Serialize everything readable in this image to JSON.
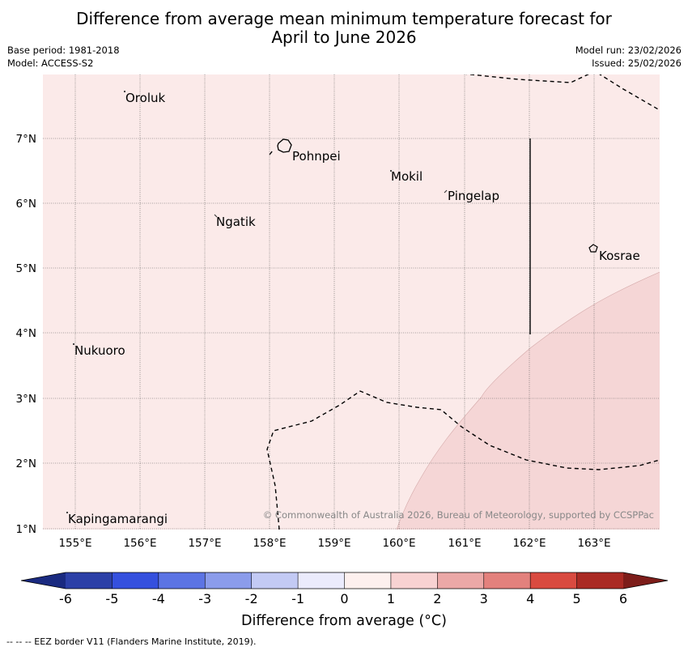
{
  "title": {
    "line1": "Difference from average mean minimum temperature forecast for",
    "line2": "April to June 2026"
  },
  "meta": {
    "base_period": "Base period: 1981-2018",
    "model": "Model: ACCESS-S2",
    "model_run": "Model run: 23/02/2026",
    "issued": "Issued: 25/02/2026"
  },
  "map": {
    "background_color": "#fbeae9",
    "warm_zone_color": "#f5d6d6",
    "lat_labels": [
      "7°N",
      "6°N",
      "5°N",
      "4°N",
      "3°N",
      "2°N",
      "1°N"
    ],
    "lon_labels": [
      "155°E",
      "156°E",
      "157°E",
      "158°E",
      "159°E",
      "160°E",
      "161°E",
      "162°E",
      "163°E"
    ],
    "places": [
      {
        "name": "Oroluk",
        "icon": "atoll-dot-icon"
      },
      {
        "name": "Pohnpei",
        "icon": "island-outline-icon"
      },
      {
        "name": "Mokil",
        "icon": "atoll-dot-icon"
      },
      {
        "name": "Pingelap",
        "icon": "atoll-dot-icon"
      },
      {
        "name": "Ngatik",
        "icon": "atoll-dot-icon"
      },
      {
        "name": "Kosrae",
        "icon": "island-outline-icon"
      },
      {
        "name": "Nukuoro",
        "icon": "atoll-dot-icon"
      },
      {
        "name": "Kapingamarangi",
        "icon": "atoll-dot-icon"
      }
    ],
    "copyright": "© Commonwealth of Australia 2026, Bureau of Meteorology, supported by CCSPPac"
  },
  "colorbar": {
    "ticks": [
      "-6",
      "-5",
      "-4",
      "-3",
      "-2",
      "-1",
      "0",
      "1",
      "2",
      "3",
      "4",
      "5",
      "6"
    ],
    "colors": [
      "#2c40a7",
      "#3550de",
      "#5c74e4",
      "#8b9ceb",
      "#c3caf4",
      "#ebebfc",
      "#fdf0ee",
      "#f8d2d2",
      "#eba8a7",
      "#e3817d",
      "#d94a40",
      "#aa2a24"
    ],
    "under_color": "#1a2a80",
    "over_color": "#7d1d1a",
    "label": "Difference from average (°C)"
  },
  "footnote": "--  --  -- EEZ border V11 (Flanders Marine Institute, 2019)."
}
